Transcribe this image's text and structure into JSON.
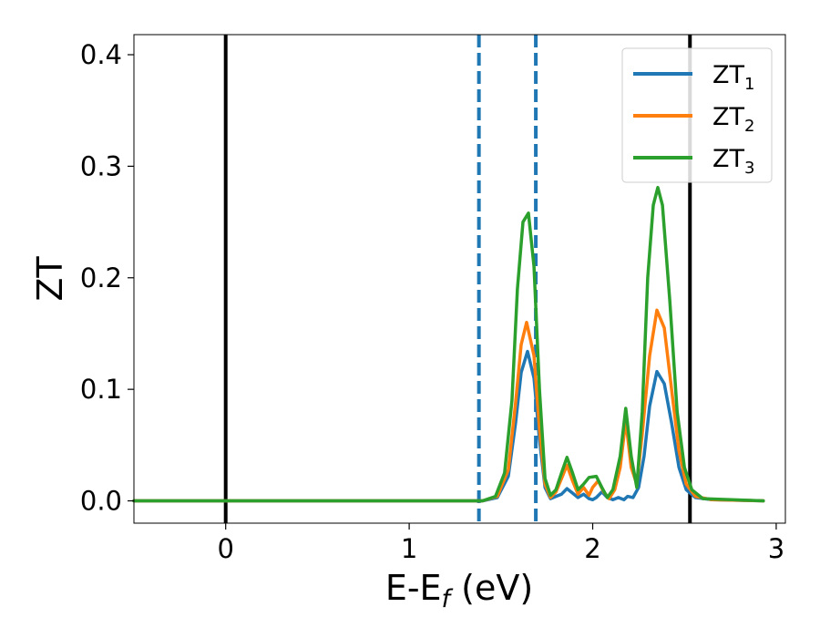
{
  "chart_data": {
    "type": "line",
    "xlabel": "E-E",
    "xlabel_sub": "f",
    "xlabel_unit": " (eV)",
    "ylabel": "ZT",
    "xlim": [
      -0.5,
      3.05
    ],
    "ylim": [
      -0.02,
      0.418
    ],
    "x_ticks": [
      {
        "value": 0,
        "label": "0"
      },
      {
        "value": 1,
        "label": "1"
      },
      {
        "value": 2,
        "label": "2"
      },
      {
        "value": 3,
        "label": "3"
      }
    ],
    "y_ticks": [
      {
        "value": 0.0,
        "label": "0.0"
      },
      {
        "value": 0.1,
        "label": "0.1"
      },
      {
        "value": 0.2,
        "label": "0.2"
      },
      {
        "value": 0.3,
        "label": "0.3"
      },
      {
        "value": 0.4,
        "label": "0.4"
      }
    ],
    "grid": false,
    "legend_position": "top-right",
    "vertical_lines": [
      {
        "x": 0.0,
        "style": "solid",
        "color": "#000000"
      },
      {
        "x": 2.53,
        "style": "solid",
        "color": "#000000"
      },
      {
        "x": 1.38,
        "style": "dashed",
        "color": "#1f77b4"
      },
      {
        "x": 1.69,
        "style": "dashed",
        "color": "#1f77b4"
      }
    ],
    "series": [
      {
        "name": "ZT",
        "sub": "1",
        "color": "#1f77b4",
        "points": [
          [
            -0.5,
            0
          ],
          [
            1.4,
            0
          ],
          [
            1.48,
            0.003
          ],
          [
            1.54,
            0.022
          ],
          [
            1.58,
            0.07
          ],
          [
            1.61,
            0.115
          ],
          [
            1.645,
            0.134
          ],
          [
            1.68,
            0.11
          ],
          [
            1.71,
            0.055
          ],
          [
            1.74,
            0.012
          ],
          [
            1.77,
            0.002
          ],
          [
            1.8,
            0.004
          ],
          [
            1.83,
            0.006
          ],
          [
            1.86,
            0.011
          ],
          [
            1.89,
            0.007
          ],
          [
            1.92,
            0.003
          ],
          [
            1.95,
            0.006
          ],
          [
            1.98,
            0.002
          ],
          [
            2.0,
            0.001
          ],
          [
            2.02,
            0.003
          ],
          [
            2.05,
            0.008
          ],
          [
            2.08,
            0.003
          ],
          [
            2.11,
            0.001
          ],
          [
            2.14,
            0.003
          ],
          [
            2.17,
            0.001
          ],
          [
            2.19,
            0.004
          ],
          [
            2.22,
            0.003
          ],
          [
            2.25,
            0.012
          ],
          [
            2.28,
            0.04
          ],
          [
            2.31,
            0.085
          ],
          [
            2.35,
            0.116
          ],
          [
            2.39,
            0.105
          ],
          [
            2.43,
            0.07
          ],
          [
            2.47,
            0.03
          ],
          [
            2.51,
            0.01
          ],
          [
            2.56,
            0.003
          ],
          [
            2.65,
            0.001
          ],
          [
            2.93,
            0
          ]
        ]
      },
      {
        "name": "ZT",
        "sub": "2",
        "color": "#ff7f0e",
        "points": [
          [
            -0.5,
            0
          ],
          [
            1.4,
            0
          ],
          [
            1.48,
            0.004
          ],
          [
            1.54,
            0.028
          ],
          [
            1.58,
            0.088
          ],
          [
            1.61,
            0.14
          ],
          [
            1.64,
            0.16
          ],
          [
            1.68,
            0.13
          ],
          [
            1.71,
            0.065
          ],
          [
            1.74,
            0.015
          ],
          [
            1.77,
            0.003
          ],
          [
            1.8,
            0.008
          ],
          [
            1.83,
            0.02
          ],
          [
            1.86,
            0.032
          ],
          [
            1.89,
            0.018
          ],
          [
            1.92,
            0.006
          ],
          [
            1.95,
            0.012
          ],
          [
            1.98,
            0.005
          ],
          [
            2.0,
            0.012
          ],
          [
            2.03,
            0.018
          ],
          [
            2.06,
            0.008
          ],
          [
            2.09,
            0.002
          ],
          [
            2.12,
            0.01
          ],
          [
            2.15,
            0.03
          ],
          [
            2.18,
            0.072
          ],
          [
            2.21,
            0.03
          ],
          [
            2.24,
            0.015
          ],
          [
            2.27,
            0.06
          ],
          [
            2.31,
            0.13
          ],
          [
            2.35,
            0.171
          ],
          [
            2.39,
            0.155
          ],
          [
            2.43,
            0.1
          ],
          [
            2.47,
            0.045
          ],
          [
            2.51,
            0.015
          ],
          [
            2.56,
            0.004
          ],
          [
            2.65,
            0.001
          ],
          [
            2.93,
            0
          ]
        ]
      },
      {
        "name": "ZT",
        "sub": "3",
        "color": "#2ca02c",
        "points": [
          [
            -0.5,
            0
          ],
          [
            1.4,
            0
          ],
          [
            1.47,
            0.004
          ],
          [
            1.52,
            0.025
          ],
          [
            1.56,
            0.09
          ],
          [
            1.59,
            0.19
          ],
          [
            1.62,
            0.25
          ],
          [
            1.65,
            0.258
          ],
          [
            1.68,
            0.21
          ],
          [
            1.71,
            0.1
          ],
          [
            1.74,
            0.02
          ],
          [
            1.77,
            0.005
          ],
          [
            1.8,
            0.01
          ],
          [
            1.83,
            0.025
          ],
          [
            1.86,
            0.039
          ],
          [
            1.89,
            0.025
          ],
          [
            1.92,
            0.01
          ],
          [
            1.95,
            0.015
          ],
          [
            1.98,
            0.021
          ],
          [
            2.02,
            0.022
          ],
          [
            2.05,
            0.012
          ],
          [
            2.08,
            0.003
          ],
          [
            2.11,
            0.01
          ],
          [
            2.15,
            0.04
          ],
          [
            2.18,
            0.083
          ],
          [
            2.21,
            0.04
          ],
          [
            2.24,
            0.012
          ],
          [
            2.27,
            0.08
          ],
          [
            2.3,
            0.2
          ],
          [
            2.33,
            0.265
          ],
          [
            2.355,
            0.281
          ],
          [
            2.38,
            0.265
          ],
          [
            2.42,
            0.18
          ],
          [
            2.46,
            0.08
          ],
          [
            2.5,
            0.03
          ],
          [
            2.54,
            0.01
          ],
          [
            2.6,
            0.002
          ],
          [
            2.93,
            0
          ]
        ]
      }
    ]
  }
}
